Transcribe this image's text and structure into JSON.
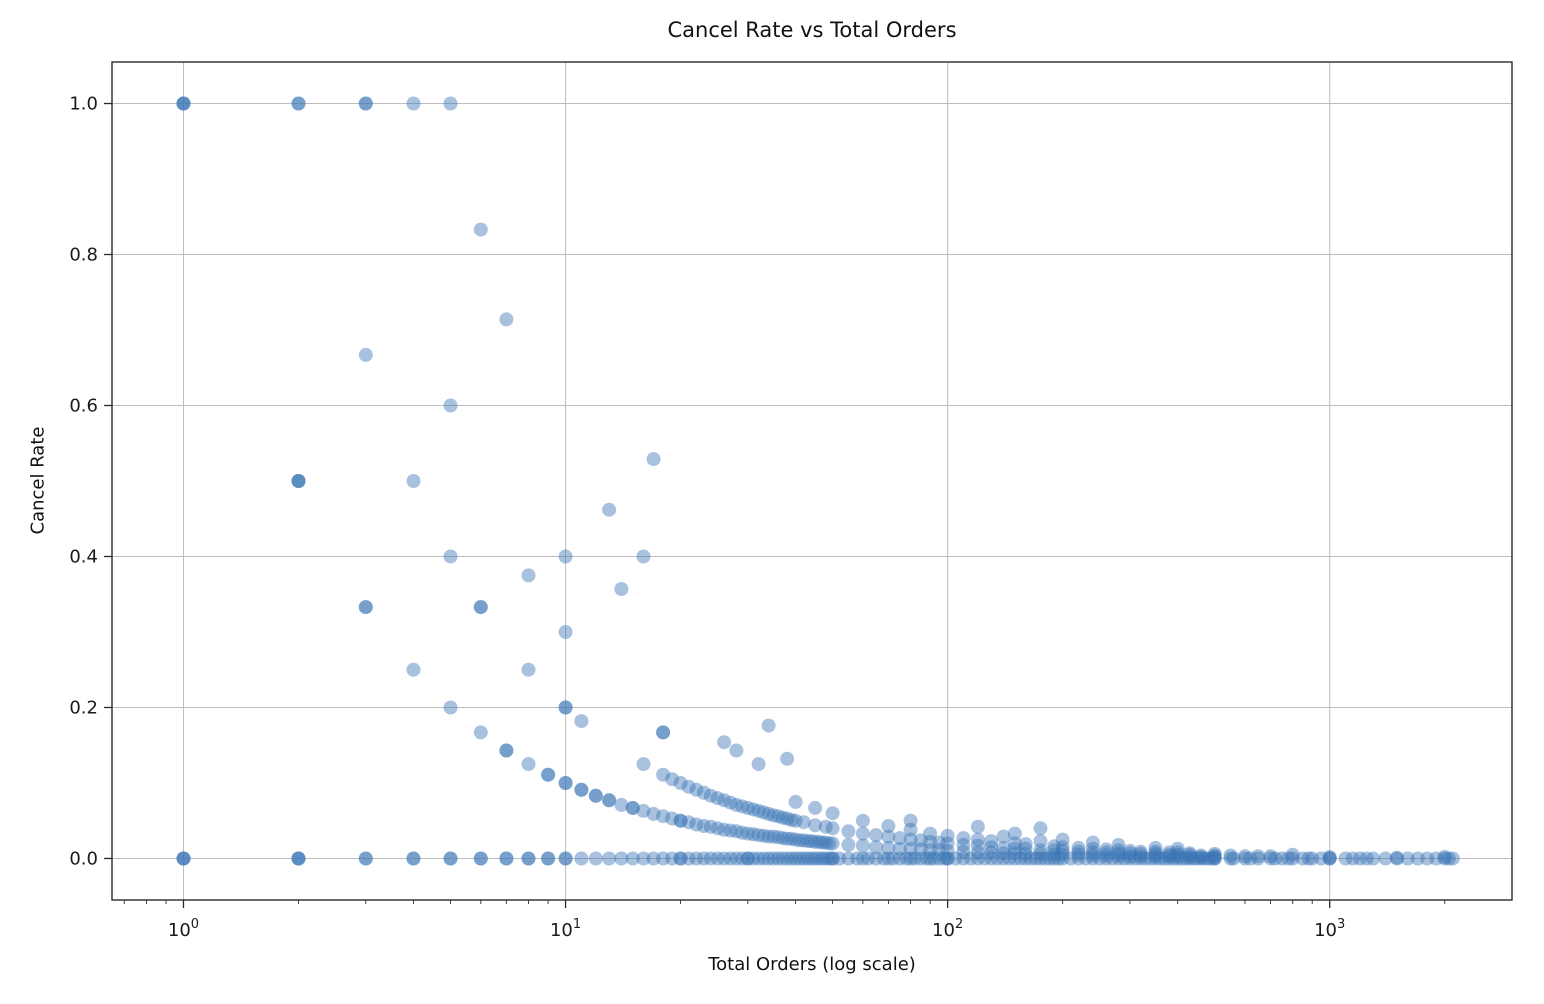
{
  "chart_data": {
    "type": "scatter",
    "title": "Cancel Rate vs Total Orders",
    "xlabel": "Total Orders (log scale)",
    "ylabel": "Cancel Rate",
    "x_scale": "log",
    "xlim": [
      0.65,
      3000
    ],
    "ylim": [
      -0.055,
      1.055
    ],
    "x_tick_exponents": [
      0,
      1,
      2,
      3
    ],
    "y_ticks": [
      0.0,
      0.2,
      0.4,
      0.6,
      0.8,
      1.0
    ],
    "grid": true,
    "legend": "none",
    "style": {
      "marker_color": "#3b76b5",
      "marker_opacity": 0.45,
      "marker_radius": 7,
      "grid_color": "#bdbdbd",
      "frame_color": "#2a2a2a",
      "text_color": "#1a1a1a"
    },
    "points": [
      [
        1,
        1.0
      ],
      [
        1,
        1.0
      ],
      [
        1,
        1.0
      ],
      [
        1,
        0
      ],
      [
        1,
        0
      ],
      [
        1,
        0
      ],
      [
        2,
        1.0
      ],
      [
        2,
        1.0
      ],
      [
        2,
        0.5
      ],
      [
        2,
        0.5
      ],
      [
        2,
        0.5
      ],
      [
        2,
        0
      ],
      [
        2,
        0
      ],
      [
        2,
        0
      ],
      [
        3,
        1.0
      ],
      [
        3,
        1.0
      ],
      [
        3,
        0.667
      ],
      [
        3,
        0.333
      ],
      [
        3,
        0.333
      ],
      [
        3,
        0
      ],
      [
        3,
        0
      ],
      [
        4,
        1.0
      ],
      [
        4,
        0.5
      ],
      [
        4,
        0.25
      ],
      [
        4,
        0
      ],
      [
        4,
        0
      ],
      [
        5,
        1.0
      ],
      [
        5,
        0.6
      ],
      [
        5,
        0.4
      ],
      [
        5,
        0.2
      ],
      [
        5,
        0
      ],
      [
        5,
        0
      ],
      [
        6,
        0.833
      ],
      [
        6,
        0.333
      ],
      [
        6,
        0.333
      ],
      [
        6,
        0.167
      ],
      [
        6,
        0
      ],
      [
        6,
        0
      ],
      [
        7,
        0.714
      ],
      [
        7,
        0.143
      ],
      [
        7,
        0.143
      ],
      [
        7,
        0
      ],
      [
        7,
        0
      ],
      [
        8,
        0.375
      ],
      [
        8,
        0.25
      ],
      [
        8,
        0.125
      ],
      [
        8,
        0
      ],
      [
        8,
        0
      ],
      [
        9,
        0.111
      ],
      [
        9,
        0.111
      ],
      [
        9,
        0
      ],
      [
        9,
        0
      ],
      [
        10,
        0.4
      ],
      [
        10,
        0.3
      ],
      [
        10,
        0.2
      ],
      [
        10,
        0.2
      ],
      [
        10,
        0.1
      ],
      [
        10,
        0.1
      ],
      [
        10,
        0
      ],
      [
        10,
        0
      ],
      [
        11,
        0.182
      ],
      [
        11,
        0.091
      ],
      [
        11,
        0.091
      ],
      [
        11,
        0
      ],
      [
        12,
        0.083
      ],
      [
        12,
        0.083
      ],
      [
        12,
        0
      ],
      [
        13,
        0.462
      ],
      [
        13,
        0.077
      ],
      [
        13,
        0.077
      ],
      [
        13,
        0
      ],
      [
        14,
        0.357
      ],
      [
        14,
        0.071
      ],
      [
        14,
        0
      ],
      [
        15,
        0.067
      ],
      [
        15,
        0.067
      ],
      [
        15,
        0
      ],
      [
        16,
        0.4
      ],
      [
        16,
        0.125
      ],
      [
        16,
        0.063
      ],
      [
        16,
        0
      ],
      [
        17,
        0.529
      ],
      [
        17,
        0.059
      ],
      [
        17,
        0
      ],
      [
        18,
        0.167
      ],
      [
        18,
        0.167
      ],
      [
        18,
        0.111
      ],
      [
        18,
        0.056
      ],
      [
        18,
        0
      ],
      [
        19,
        0.105
      ],
      [
        19,
        0.053
      ],
      [
        19,
        0
      ],
      [
        20,
        0.1
      ],
      [
        20,
        0.05
      ],
      [
        20,
        0.05
      ],
      [
        20,
        0
      ],
      [
        20,
        0
      ],
      [
        21,
        0.095
      ],
      [
        21,
        0.048
      ],
      [
        21,
        0
      ],
      [
        22,
        0.091
      ],
      [
        22,
        0.045
      ],
      [
        22,
        0
      ],
      [
        23,
        0.087
      ],
      [
        23,
        0.043
      ],
      [
        23,
        0
      ],
      [
        24,
        0.083
      ],
      [
        24,
        0.042
      ],
      [
        24,
        0
      ],
      [
        25,
        0.08
      ],
      [
        25,
        0.04
      ],
      [
        25,
        0
      ],
      [
        26,
        0.154
      ],
      [
        26,
        0.077
      ],
      [
        26,
        0.038
      ],
      [
        26,
        0
      ],
      [
        27,
        0.074
      ],
      [
        27,
        0.037
      ],
      [
        27,
        0
      ],
      [
        28,
        0.143
      ],
      [
        28,
        0.071
      ],
      [
        28,
        0.036
      ],
      [
        28,
        0
      ],
      [
        29,
        0.069
      ],
      [
        29,
        0.034
      ],
      [
        29,
        0
      ],
      [
        30,
        0.067
      ],
      [
        30,
        0.033
      ],
      [
        30,
        0
      ],
      [
        30,
        0
      ],
      [
        31,
        0.065
      ],
      [
        31,
        0.032
      ],
      [
        31,
        0
      ],
      [
        32,
        0.125
      ],
      [
        32,
        0.063
      ],
      [
        32,
        0.031
      ],
      [
        32,
        0
      ],
      [
        33,
        0.061
      ],
      [
        33,
        0.03
      ],
      [
        33,
        0
      ],
      [
        34,
        0.176
      ],
      [
        34,
        0.059
      ],
      [
        34,
        0.029
      ],
      [
        34,
        0
      ],
      [
        35,
        0.057
      ],
      [
        35,
        0.029
      ],
      [
        35,
        0
      ],
      [
        36,
        0.056
      ],
      [
        36,
        0.028
      ],
      [
        36,
        0
      ],
      [
        37,
        0.054
      ],
      [
        37,
        0.027
      ],
      [
        37,
        0
      ],
      [
        38,
        0.132
      ],
      [
        38,
        0.053
      ],
      [
        38,
        0.026
      ],
      [
        38,
        0
      ],
      [
        39,
        0.051
      ],
      [
        39,
        0.026
      ],
      [
        39,
        0
      ],
      [
        40,
        0.075
      ],
      [
        40,
        0.05
      ],
      [
        40,
        0.025
      ],
      [
        40,
        0
      ],
      [
        41,
        0.024
      ],
      [
        41,
        0
      ],
      [
        42,
        0.048
      ],
      [
        42,
        0.024
      ],
      [
        42,
        0
      ],
      [
        43,
        0.023
      ],
      [
        43,
        0
      ],
      [
        44,
        0.023
      ],
      [
        44,
        0
      ],
      [
        45,
        0.067
      ],
      [
        45,
        0.044
      ],
      [
        45,
        0.022
      ],
      [
        45,
        0
      ],
      [
        46,
        0.022
      ],
      [
        46,
        0
      ],
      [
        47,
        0.021
      ],
      [
        47,
        0
      ],
      [
        48,
        0.042
      ],
      [
        48,
        0.021
      ],
      [
        48,
        0
      ],
      [
        49,
        0.02
      ],
      [
        49,
        0
      ],
      [
        50,
        0.06
      ],
      [
        50,
        0.04
      ],
      [
        50,
        0.02
      ],
      [
        50,
        0
      ],
      [
        50,
        0
      ],
      [
        52,
        0
      ],
      [
        55,
        0.036
      ],
      [
        55,
        0.018
      ],
      [
        55,
        0
      ],
      [
        58,
        0
      ],
      [
        60,
        0.05
      ],
      [
        60,
        0.033
      ],
      [
        60,
        0.017
      ],
      [
        60,
        0
      ],
      [
        62,
        0
      ],
      [
        65,
        0.031
      ],
      [
        65,
        0.015
      ],
      [
        65,
        0
      ],
      [
        68,
        0
      ],
      [
        70,
        0.043
      ],
      [
        70,
        0.029
      ],
      [
        70,
        0.014
      ],
      [
        70,
        0
      ],
      [
        72,
        0
      ],
      [
        75,
        0.027
      ],
      [
        75,
        0.013
      ],
      [
        75,
        0
      ],
      [
        78,
        0
      ],
      [
        80,
        0.05
      ],
      [
        80,
        0.038
      ],
      [
        80,
        0.025
      ],
      [
        80,
        0.013
      ],
      [
        80,
        0
      ],
      [
        82,
        0
      ],
      [
        85,
        0.024
      ],
      [
        85,
        0.012
      ],
      [
        85,
        0
      ],
      [
        88,
        0
      ],
      [
        90,
        0.033
      ],
      [
        90,
        0.022
      ],
      [
        90,
        0.011
      ],
      [
        90,
        0
      ],
      [
        92,
        0
      ],
      [
        95,
        0.021
      ],
      [
        95,
        0.011
      ],
      [
        95,
        0
      ],
      [
        98,
        0
      ],
      [
        100,
        0.03
      ],
      [
        100,
        0.02
      ],
      [
        100,
        0.01
      ],
      [
        100,
        0
      ],
      [
        100,
        0
      ],
      [
        105,
        0
      ],
      [
        110,
        0.027
      ],
      [
        110,
        0.018
      ],
      [
        110,
        0.009
      ],
      [
        110,
        0
      ],
      [
        115,
        0
      ],
      [
        120,
        0.042
      ],
      [
        120,
        0.025
      ],
      [
        120,
        0.017
      ],
      [
        120,
        0.008
      ],
      [
        120,
        0
      ],
      [
        125,
        0
      ],
      [
        130,
        0.023
      ],
      [
        130,
        0.015
      ],
      [
        130,
        0.008
      ],
      [
        130,
        0
      ],
      [
        135,
        0
      ],
      [
        140,
        0.029
      ],
      [
        140,
        0.014
      ],
      [
        140,
        0.007
      ],
      [
        140,
        0
      ],
      [
        145,
        0
      ],
      [
        150,
        0.033
      ],
      [
        150,
        0.02
      ],
      [
        150,
        0.013
      ],
      [
        150,
        0.007
      ],
      [
        150,
        0
      ],
      [
        155,
        0
      ],
      [
        160,
        0.019
      ],
      [
        160,
        0.013
      ],
      [
        160,
        0.006
      ],
      [
        160,
        0
      ],
      [
        165,
        0
      ],
      [
        170,
        0
      ],
      [
        175,
        0.04
      ],
      [
        175,
        0.023
      ],
      [
        175,
        0.011
      ],
      [
        175,
        0.006
      ],
      [
        175,
        0
      ],
      [
        180,
        0
      ],
      [
        185,
        0
      ],
      [
        190,
        0.016
      ],
      [
        190,
        0.011
      ],
      [
        190,
        0.005
      ],
      [
        190,
        0
      ],
      [
        195,
        0
      ],
      [
        200,
        0.025
      ],
      [
        200,
        0.015
      ],
      [
        200,
        0.01
      ],
      [
        200,
        0.005
      ],
      [
        200,
        0
      ],
      [
        210,
        0
      ],
      [
        220,
        0.014
      ],
      [
        220,
        0.009
      ],
      [
        220,
        0.005
      ],
      [
        220,
        0
      ],
      [
        230,
        0
      ],
      [
        240,
        0.021
      ],
      [
        240,
        0.013
      ],
      [
        240,
        0.008
      ],
      [
        240,
        0.004
      ],
      [
        240,
        0
      ],
      [
        250,
        0
      ],
      [
        260,
        0.012
      ],
      [
        260,
        0.008
      ],
      [
        260,
        0.004
      ],
      [
        260,
        0
      ],
      [
        270,
        0
      ],
      [
        280,
        0.018
      ],
      [
        280,
        0.011
      ],
      [
        280,
        0.007
      ],
      [
        280,
        0.004
      ],
      [
        280,
        0
      ],
      [
        290,
        0
      ],
      [
        300,
        0.01
      ],
      [
        300,
        0.007
      ],
      [
        300,
        0.003
      ],
      [
        300,
        0
      ],
      [
        310,
        0
      ],
      [
        320,
        0.009
      ],
      [
        320,
        0.006
      ],
      [
        320,
        0.003
      ],
      [
        320,
        0
      ],
      [
        330,
        0
      ],
      [
        340,
        0
      ],
      [
        350,
        0.014
      ],
      [
        350,
        0.009
      ],
      [
        350,
        0.006
      ],
      [
        350,
        0.003
      ],
      [
        350,
        0
      ],
      [
        360,
        0
      ],
      [
        370,
        0
      ],
      [
        380,
        0.008
      ],
      [
        380,
        0.005
      ],
      [
        380,
        0.003
      ],
      [
        380,
        0
      ],
      [
        390,
        0
      ],
      [
        400,
        0.013
      ],
      [
        400,
        0.008
      ],
      [
        400,
        0.005
      ],
      [
        400,
        0.003
      ],
      [
        400,
        0
      ],
      [
        410,
        0
      ],
      [
        420,
        0
      ],
      [
        430,
        0.007
      ],
      [
        430,
        0.005
      ],
      [
        430,
        0.002
      ],
      [
        430,
        0
      ],
      [
        440,
        0
      ],
      [
        450,
        0
      ],
      [
        460,
        0.004
      ],
      [
        460,
        0.002
      ],
      [
        460,
        0
      ],
      [
        470,
        0
      ],
      [
        480,
        0
      ],
      [
        490,
        0
      ],
      [
        500,
        0.006
      ],
      [
        500,
        0.004
      ],
      [
        500,
        0.002
      ],
      [
        500,
        0
      ],
      [
        500,
        0
      ],
      [
        550,
        0.004
      ],
      [
        550,
        0
      ],
      [
        560,
        0
      ],
      [
        600,
        0.003
      ],
      [
        600,
        0
      ],
      [
        620,
        0
      ],
      [
        650,
        0.003
      ],
      [
        650,
        0
      ],
      [
        700,
        0.003
      ],
      [
        700,
        0
      ],
      [
        720,
        0
      ],
      [
        750,
        0
      ],
      [
        780,
        0
      ],
      [
        800,
        0.005
      ],
      [
        800,
        0
      ],
      [
        850,
        0
      ],
      [
        880,
        0
      ],
      [
        900,
        0
      ],
      [
        950,
        0
      ],
      [
        1000,
        0.002
      ],
      [
        1000,
        0
      ],
      [
        1000,
        0
      ],
      [
        1100,
        0
      ],
      [
        1150,
        0
      ],
      [
        1200,
        0
      ],
      [
        1250,
        0
      ],
      [
        1300,
        0
      ],
      [
        1400,
        0
      ],
      [
        1500,
        0.001
      ],
      [
        1500,
        0
      ],
      [
        1600,
        0
      ],
      [
        1700,
        0
      ],
      [
        1800,
        0
      ],
      [
        1900,
        0
      ],
      [
        2000,
        0.002
      ],
      [
        2000,
        0
      ],
      [
        2050,
        0
      ],
      [
        2100,
        0
      ]
    ]
  }
}
